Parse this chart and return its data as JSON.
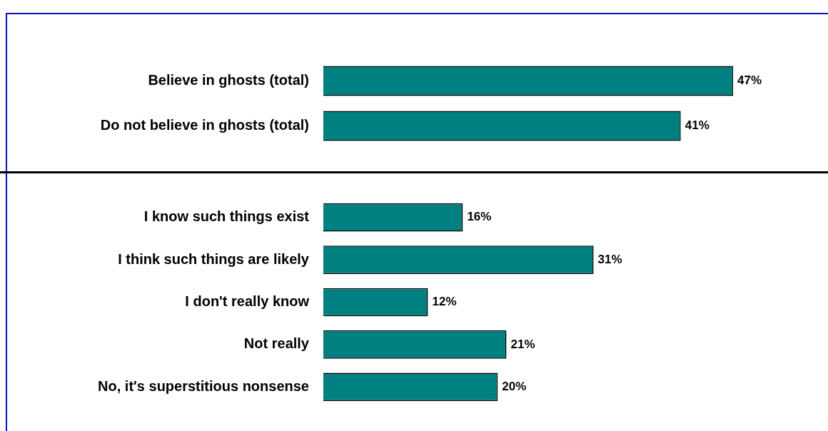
{
  "chart_data": [
    {
      "type": "bar",
      "orientation": "horizontal",
      "categories": [
        "Believe in ghosts (total)",
        "Do not believe in ghosts (total)"
      ],
      "values": [
        47,
        41
      ],
      "value_labels": [
        "47%",
        "41%"
      ],
      "color": "#008080",
      "tick_labels": "y",
      "grid": false,
      "legend": false
    },
    {
      "type": "bar",
      "orientation": "horizontal",
      "categories": [
        "I know such things exist",
        "I think such things are likely",
        "I don't really know",
        "Not really",
        "No, it's superstitious nonsense"
      ],
      "values": [
        16,
        31,
        12,
        21,
        20
      ],
      "value_labels": [
        "16%",
        "31%",
        "12%",
        "21%",
        "20%"
      ],
      "color": "#008080",
      "tick_labels": "y",
      "grid": false,
      "legend": false
    }
  ]
}
